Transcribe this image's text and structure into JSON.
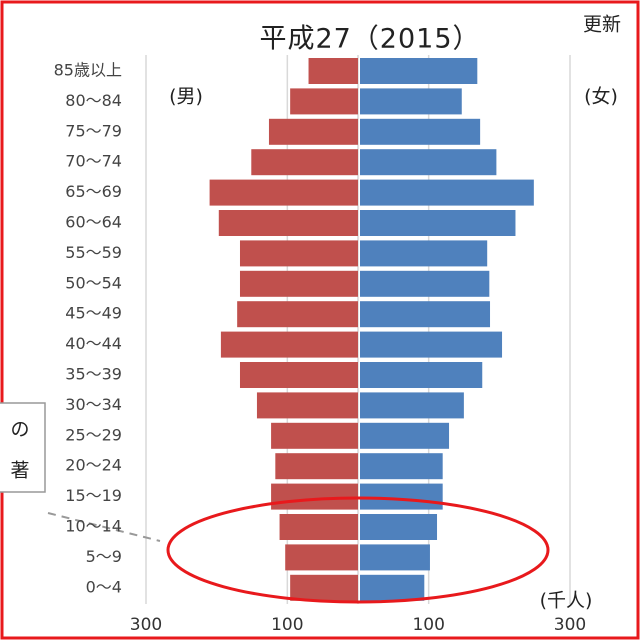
{
  "chart_data": {
    "type": "pyramid",
    "title": "平成27（2015）",
    "update_label": "更新",
    "left_label": "(男)",
    "right_label": "(女)",
    "unit_label": "(千人)",
    "annotations": [
      "の",
      "著"
    ],
    "categories": [
      "85歳以上",
      "80～84",
      "75～79",
      "70～74",
      "65～69",
      "60～64",
      "55～59",
      "50～54",
      "45～49",
      "40～44",
      "35～39",
      "30～34",
      "25～29",
      "20～24",
      "15～19",
      "10～14",
      "5～9",
      "0～4"
    ],
    "series": [
      {
        "name": "男",
        "color": "#c0504d",
        "values": [
          70,
          96,
          126,
          151,
          210,
          197,
          167,
          167,
          171,
          194,
          167,
          143,
          123,
          117,
          123,
          111,
          103,
          96
        ]
      },
      {
        "name": "女",
        "color": "#4f81bd",
        "values": [
          166,
          144,
          170,
          193,
          246,
          220,
          180,
          183,
          184,
          201,
          173,
          147,
          126,
          117,
          117,
          109,
          99,
          91
        ]
      }
    ],
    "xlim": [
      -300,
      300
    ],
    "xticks": [
      {
        "value": -300,
        "label": "300"
      },
      {
        "value": -100,
        "label": "100"
      },
      100,
      300
    ],
    "grid": true
  }
}
